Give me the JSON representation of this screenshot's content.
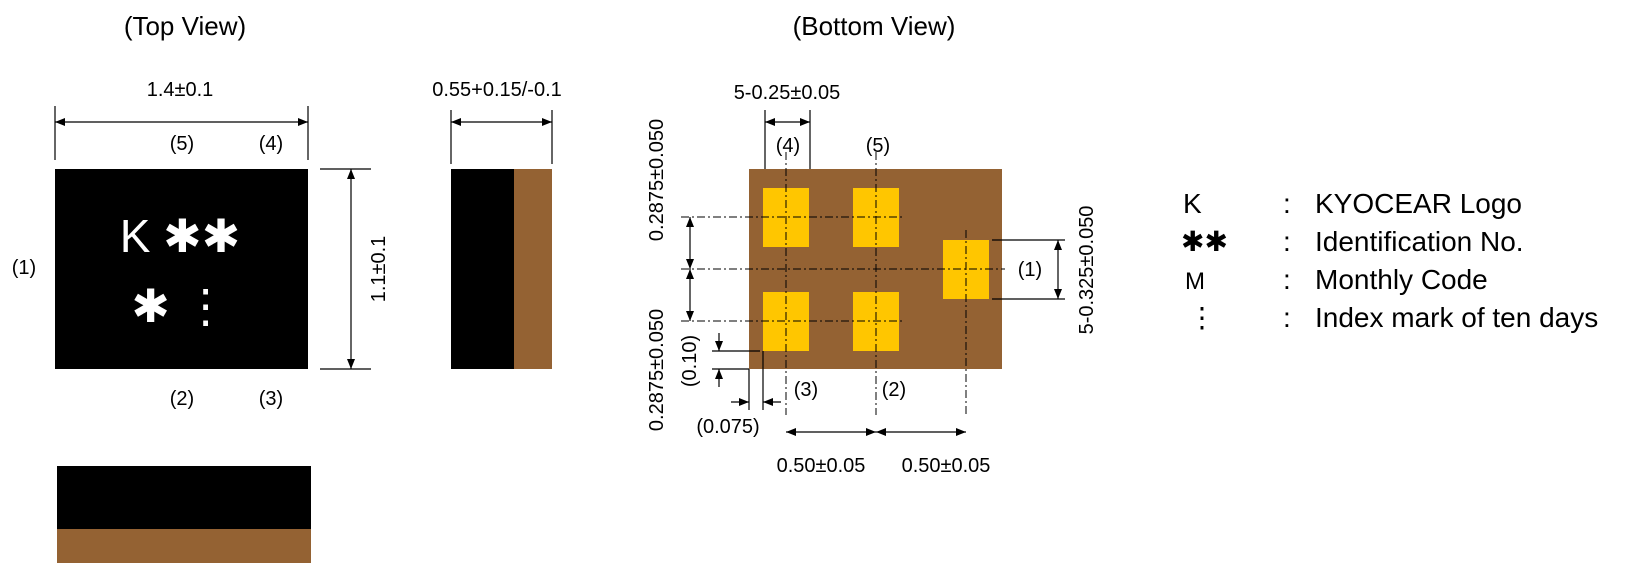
{
  "colors": {
    "body": "#000000",
    "electrode": "#946233",
    "pad": "#ffc600",
    "background": "#ffffff"
  },
  "top_view": {
    "title": "(Top View)",
    "width_dim": "1.4±0.1",
    "height_dim": "1.1±0.1",
    "thickness_dim": "0.55+0.15/-0.1",
    "marking_line1": "K ✱✱",
    "marking_line2": "✱ ⋮",
    "pin_labels": {
      "p1": "(1)",
      "p2": "(2)",
      "p3": "(3)",
      "p4": "(4)",
      "p5": "(5)"
    }
  },
  "bottom_view": {
    "title": "(Bottom View)",
    "pad_width_dim": "5-0.25±0.05",
    "pad_height_dim": "5-0.325±0.050",
    "pitch_upper_dim": "0.2875±0.050",
    "pitch_lower_dim": "0.2875±0.050",
    "offset_y_dim": "(0.10)",
    "offset_x_dim": "(0.075)",
    "pitch_x1_dim": "0.50±0.05",
    "pitch_x2_dim": "0.50±0.05",
    "pin_labels": {
      "p1": "(1)",
      "p2": "(2)",
      "p3": "(3)",
      "p4": "(4)",
      "p5": "(5)"
    }
  },
  "legend": [
    {
      "symbol": "K",
      "colon": ":",
      "text": "KYOCEAR Logo"
    },
    {
      "symbol": "✱✱",
      "colon": ":",
      "text": "Identification No."
    },
    {
      "symbol": "M",
      "colon": ":",
      "text": "Monthly Code"
    },
    {
      "symbol": "⋮",
      "colon": ":",
      "text": "Index mark of ten days"
    }
  ]
}
